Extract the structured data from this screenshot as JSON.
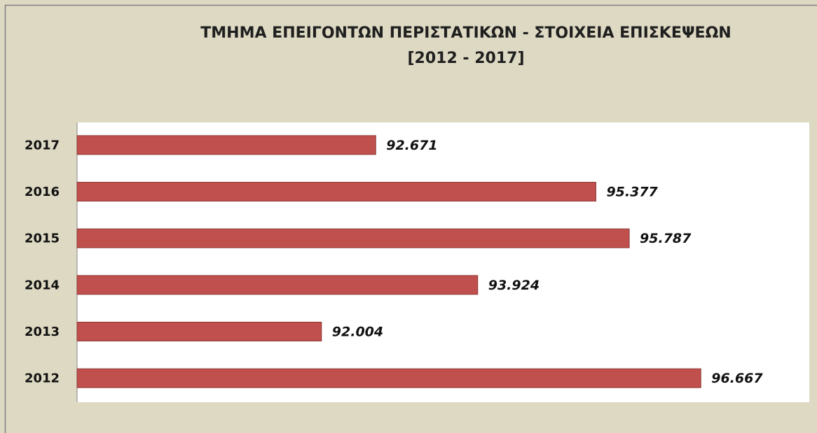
{
  "chart_data": {
    "type": "barh",
    "title": "ΤΜΗΜΑ ΕΠΕΙΓΟΝΤΩΝ ΠΕΡΙΣΤΑΤΙΚΩΝ - ΣΤΟΙΧΕΙΑ ΕΠΙΣΚΕΨΕΩΝ",
    "subtitle": "[2012 - 2017]",
    "categories": [
      "2017",
      "2016",
      "2015",
      "2014",
      "2013",
      "2012"
    ],
    "values": [
      92671,
      95377,
      95787,
      93924,
      92004,
      96667
    ],
    "value_labels": [
      "92.671",
      "95.377",
      "95.787",
      "93.924",
      "92.004",
      "96.667"
    ],
    "color": "#c0504d",
    "xlim": [
      89000,
      98000
    ]
  }
}
